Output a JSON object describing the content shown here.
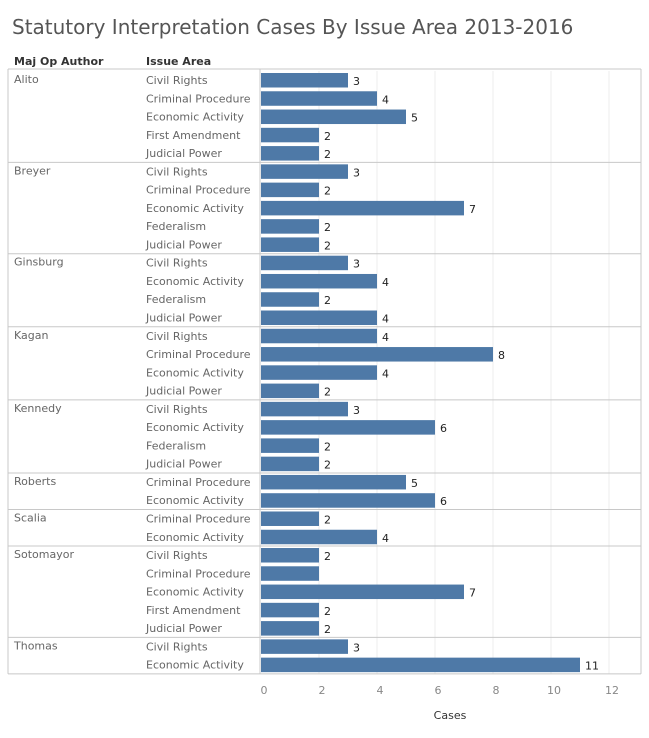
{
  "chart_data": {
    "type": "bar",
    "orientation": "horizontal",
    "title": "Statutory Interpretation Cases By Issue Area 2013-2016",
    "row_headers": [
      "Maj Op Author",
      "Issue Area"
    ],
    "xlabel": "Cases",
    "xlim": [
      0,
      12.5
    ],
    "xticks": [
      0,
      2,
      4,
      6,
      8,
      10,
      12
    ],
    "grid": true,
    "bar_color": "#4e79a7",
    "groups": [
      {
        "author": "Alito",
        "rows": [
          {
            "issue": "Civil Rights",
            "value": 3,
            "label": true
          },
          {
            "issue": "Criminal Procedure",
            "value": 4,
            "label": true
          },
          {
            "issue": "Economic Activity",
            "value": 5,
            "label": true
          },
          {
            "issue": "First Amendment",
            "value": 2,
            "label": true
          },
          {
            "issue": "Judicial Power",
            "value": 2,
            "label": true
          }
        ]
      },
      {
        "author": "Breyer",
        "rows": [
          {
            "issue": "Civil Rights",
            "value": 3,
            "label": true
          },
          {
            "issue": "Criminal Procedure",
            "value": 2,
            "label": true
          },
          {
            "issue": "Economic Activity",
            "value": 7,
            "label": true
          },
          {
            "issue": "Federalism",
            "value": 2,
            "label": true
          },
          {
            "issue": "Judicial Power",
            "value": 2,
            "label": true
          }
        ]
      },
      {
        "author": "Ginsburg",
        "rows": [
          {
            "issue": "Civil Rights",
            "value": 3,
            "label": true
          },
          {
            "issue": "Economic Activity",
            "value": 4,
            "label": true
          },
          {
            "issue": "Federalism",
            "value": 2,
            "label": true
          },
          {
            "issue": "Judicial Power",
            "value": 4,
            "label": true
          }
        ]
      },
      {
        "author": "Kagan",
        "rows": [
          {
            "issue": "Civil Rights",
            "value": 4,
            "label": true
          },
          {
            "issue": "Criminal Procedure",
            "value": 8,
            "label": true
          },
          {
            "issue": "Economic Activity",
            "value": 4,
            "label": true
          },
          {
            "issue": "Judicial Power",
            "value": 2,
            "label": true
          }
        ]
      },
      {
        "author": "Kennedy",
        "rows": [
          {
            "issue": "Civil Rights",
            "value": 3,
            "label": true
          },
          {
            "issue": "Economic Activity",
            "value": 6,
            "label": true
          },
          {
            "issue": "Federalism",
            "value": 2,
            "label": true
          },
          {
            "issue": "Judicial Power",
            "value": 2,
            "label": true
          }
        ]
      },
      {
        "author": "Roberts",
        "rows": [
          {
            "issue": "Criminal Procedure",
            "value": 5,
            "label": true
          },
          {
            "issue": "Economic Activity",
            "value": 6,
            "label": true
          }
        ]
      },
      {
        "author": "Scalia",
        "rows": [
          {
            "issue": "Criminal Procedure",
            "value": 2,
            "label": true
          },
          {
            "issue": "Economic Activity",
            "value": 4,
            "label": true
          }
        ]
      },
      {
        "author": "Sotomayor",
        "rows": [
          {
            "issue": "Civil Rights",
            "value": 2,
            "label": true
          },
          {
            "issue": "Criminal Procedure",
            "value": 2,
            "label": false
          },
          {
            "issue": "Economic Activity",
            "value": 7,
            "label": true
          },
          {
            "issue": "First Amendment",
            "value": 2,
            "label": true
          },
          {
            "issue": "Judicial Power",
            "value": 2,
            "label": true
          }
        ]
      },
      {
        "author": "Thomas",
        "rows": [
          {
            "issue": "Civil Rights",
            "value": 3,
            "label": true
          },
          {
            "issue": "Economic Activity",
            "value": 11,
            "label": true
          }
        ]
      }
    ]
  }
}
